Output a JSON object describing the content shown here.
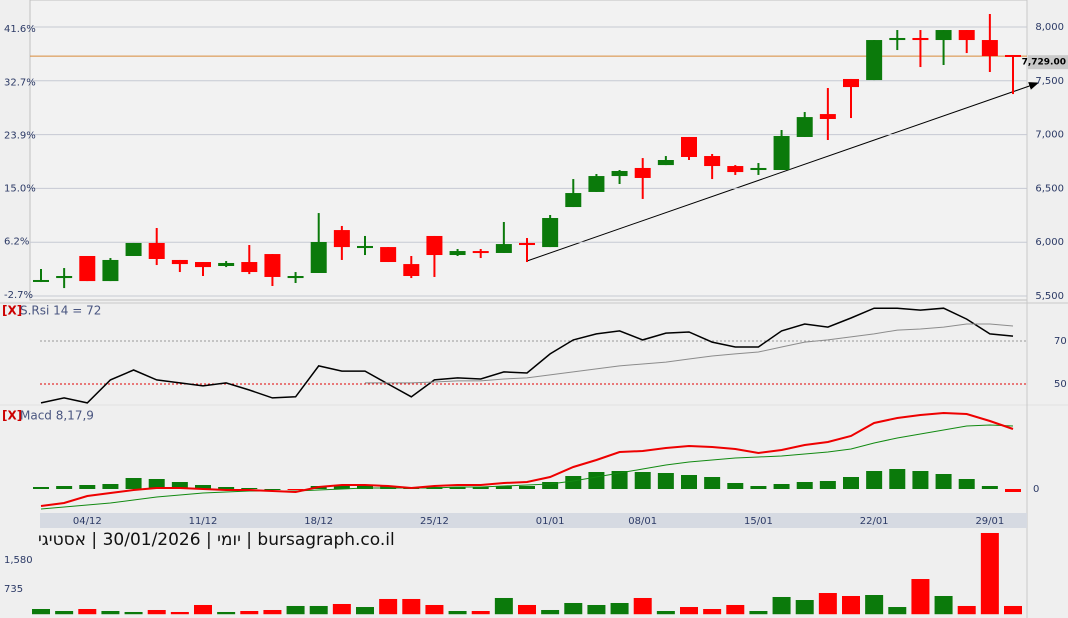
{
  "chart_data": [
    {
      "type": "candlestick",
      "categories": [
        null,
        null,
        "04/12",
        null,
        null,
        null,
        null,
        "11/12",
        null,
        null,
        null,
        null,
        "18/12",
        null,
        null,
        null,
        null,
        "25/12",
        null,
        null,
        null,
        null,
        "01/01",
        null,
        null,
        null,
        "08/01",
        null,
        null,
        null,
        null,
        "15/01",
        null,
        null,
        null,
        null,
        "22/01",
        null,
        null,
        null,
        null,
        "29/01",
        null
      ],
      "open": [
        5639,
        5667,
        5872,
        5639,
        5872,
        5993,
        5835,
        5816,
        5779,
        5816,
        5890,
        5667,
        5714,
        6113,
        5946,
        5955,
        5797,
        6058,
        5881,
        5918,
        5900,
        5993,
        5955,
        6327,
        6467,
        6615,
        6690,
        6717,
        6978,
        6801,
        6708,
        6671,
        6671,
        6978,
        7191,
        7517,
        7507,
        7879,
        7898,
        7879,
        7972,
        7879,
        7740
      ],
      "high": [
        5751,
        5760,
        5872,
        5853,
        5993,
        6132,
        5835,
        5816,
        5825,
        5974,
        5890,
        5723,
        6271,
        6151,
        6058,
        5955,
        5872,
        6058,
        5937,
        5937,
        6188,
        6039,
        6253,
        6587,
        6634,
        6671,
        6782,
        6801,
        6978,
        6820,
        6717,
        6736,
        7043,
        7210,
        7433,
        7517,
        7879,
        7972,
        7972,
        7972,
        7972,
        8121,
        7740
      ],
      "low": [
        5630,
        5574,
        5639,
        5639,
        5872,
        5788,
        5723,
        5686,
        5769,
        5704,
        5593,
        5621,
        5714,
        5835,
        5881,
        5816,
        5667,
        5677,
        5872,
        5853,
        5900,
        5816,
        5955,
        6327,
        6467,
        6541,
        6402,
        6717,
        6764,
        6587,
        6625,
        6625,
        6671,
        6978,
        6950,
        7154,
        7507,
        7786,
        7628,
        7647,
        7758,
        7582,
        7377
      ],
      "close": [
        5649,
        5686,
        5639,
        5835,
        5993,
        5844,
        5797,
        5769,
        5807,
        5723,
        5677,
        5686,
        6002,
        5955,
        5965,
        5816,
        5686,
        5881,
        5918,
        5900,
        5983,
        5974,
        6225,
        6457,
        6615,
        6662,
        6597,
        6764,
        6792,
        6708,
        6652,
        6690,
        6987,
        7163,
        7145,
        7442,
        7879,
        7898,
        7879,
        7972,
        7879,
        7730,
        7729
      ],
      "up_color": "#0b7a0b",
      "down_color": "#ff0000",
      "ylim": [
        5463,
        8251
      ],
      "yticks": [
        {
          "value": 8000,
          "label": "8,000"
        },
        {
          "value": 7500,
          "label": "7,500"
        },
        {
          "value": 7000,
          "label": "7,000"
        },
        {
          "value": 6500,
          "label": "6,500"
        },
        {
          "value": 6000,
          "label": "6,000"
        },
        {
          "value": 5500,
          "label": "5,500"
        }
      ],
      "y2lim": [
        -3.53,
        46.43
      ],
      "y2ticks": [
        {
          "value": 41.6,
          "label": "41.6%"
        },
        {
          "value": 32.7,
          "label": "32.7%"
        },
        {
          "value": 23.9,
          "label": "23.9%"
        },
        {
          "value": 15.0,
          "label": "15.0%"
        },
        {
          "value": 6.2,
          "label": "6.2%"
        },
        {
          "value": -2.7,
          "label": "-2.7%"
        }
      ],
      "grid": true,
      "grid_color": "#c6c9d3",
      "last_price": {
        "value": 7729,
        "label": "7,729.00"
      },
      "last_price_color": "#d98a3a"
    },
    {
      "type": "line",
      "title_prefix": "[X]",
      "title": "S.Rsi 14 = 72",
      "series": [
        {
          "color": "#000000",
          "values": [
            41.2,
            43.5,
            41.2,
            51.9,
            56.5,
            51.9,
            50.5,
            49.1,
            50.5,
            47.2,
            43.5,
            44.0,
            58.4,
            56.0,
            56.0,
            50.0,
            44.0,
            51.9,
            52.8,
            52.3,
            55.6,
            55.1,
            64.0,
            70.5,
            73.3,
            74.7,
            70.5,
            73.7,
            74.2,
            69.5,
            67.2,
            67.2,
            74.7,
            77.9,
            76.5,
            80.7,
            85.3,
            85.3,
            84.4,
            85.3,
            80.2,
            73.3,
            72.3
          ]
        },
        {
          "color": "#8c8c8c",
          "values": [
            null,
            null,
            null,
            null,
            null,
            null,
            null,
            null,
            null,
            null,
            null,
            null,
            null,
            null,
            50.5,
            50.5,
            50.5,
            50.9,
            51.4,
            51.4,
            52.3,
            52.8,
            54.2,
            55.6,
            57.0,
            58.4,
            59.3,
            60.2,
            61.6,
            63.0,
            64.0,
            64.9,
            67.2,
            69.5,
            70.5,
            71.9,
            73.3,
            75.1,
            75.6,
            76.5,
            77.9,
            77.9,
            77.0
          ]
        }
      ],
      "ylim": [
        40.2,
        87.7
      ],
      "yticks": [
        70,
        50
      ],
      "grid_colors": [
        "#9a9a9a",
        "#e00000"
      ]
    },
    {
      "type": "macd",
      "title_prefix": "[X]",
      "title": "Macd 8,17,9",
      "macd": {
        "color": "#ee0000",
        "values": [
          -51,
          -42,
          -21,
          -12,
          -3,
          3,
          3,
          0,
          -3,
          -3,
          -6,
          -9,
          6,
          12,
          12,
          9,
          3,
          9,
          12,
          12,
          18,
          21,
          36,
          66,
          87,
          111,
          114,
          123,
          129,
          126,
          120,
          108,
          117,
          132,
          141,
          159,
          198,
          213,
          222,
          228,
          225,
          204,
          180
        ]
      },
      "signal": {
        "color": "#128a12",
        "values": [
          -60,
          -54,
          -48,
          -42,
          -33,
          -24,
          -18,
          -12,
          -9,
          -6,
          -6,
          -6,
          -3,
          0,
          3,
          3,
          3,
          3,
          6,
          6,
          9,
          12,
          15,
          24,
          36,
          48,
          60,
          72,
          81,
          87,
          93,
          96,
          99,
          105,
          111,
          120,
          138,
          153,
          165,
          177,
          189,
          192,
          189
        ]
      },
      "histogram": {
        "values": [
          6,
          9,
          12,
          15,
          33,
          30,
          21,
          12,
          6,
          3,
          0,
          -3,
          9,
          12,
          12,
          9,
          3,
          6,
          6,
          6,
          9,
          9,
          21,
          39,
          51,
          54,
          51,
          48,
          42,
          36,
          18,
          9,
          15,
          21,
          24,
          36,
          54,
          60,
          54,
          45,
          30,
          9,
          -9
        ]
      },
      "up_color": "#0b7a0b",
      "down_color": "#ff0000",
      "ylim": [
        -69,
        252
      ],
      "yticks": [
        0
      ]
    },
    {
      "type": "bar",
      "title": "יומי | 30/01/2026 | אסטיגי | bursagraph.co.il",
      "values": [
        152,
        94,
        152,
        94,
        65,
        123,
        65,
        269,
        65,
        94,
        123,
        240,
        240,
        298,
        210,
        444,
        444,
        269,
        94,
        94,
        473,
        269,
        123,
        327,
        269,
        327,
        473,
        94,
        210,
        152,
        269,
        94,
        502,
        414,
        618,
        531,
        560,
        210,
        1026,
        531,
        240,
        2367,
        240
      ],
      "up_color": "#0b7a0b",
      "down_color": "#ff0000",
      "ylim": [
        -81,
        2454
      ],
      "yticks": [
        {
          "value": 1580,
          "label": "1,580"
        },
        735
      ]
    }
  ]
}
